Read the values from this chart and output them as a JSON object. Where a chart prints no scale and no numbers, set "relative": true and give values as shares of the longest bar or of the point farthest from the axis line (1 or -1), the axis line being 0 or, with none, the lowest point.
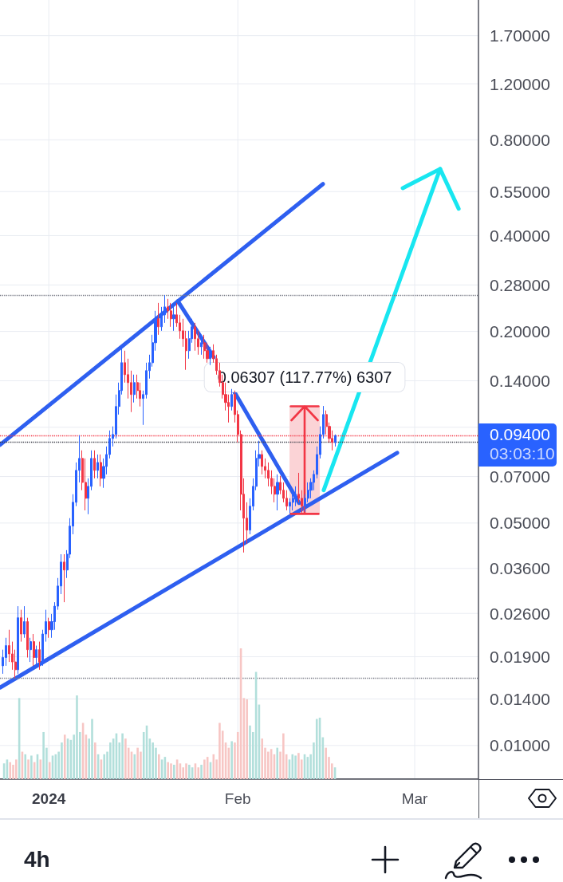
{
  "chart_data": [
    {
      "type": "candlestick",
      "log": "y",
      "grid": true,
      "xlim": [
        "2023-12-24T00:00",
        "2024-03-11T11:00"
      ],
      "xticks": [
        {
          "value": "2024-01-01",
          "label": "2024"
        },
        {
          "value": "2024-02-01",
          "label": "Feb"
        },
        {
          "value": "2024-03-01",
          "label": "Mar"
        }
      ],
      "ylim": [
        0.00784,
        2.2
      ],
      "yticks": [
        {
          "value": 0.01,
          "label": "0.01000"
        },
        {
          "value": 0.014,
          "label": "0.01400"
        },
        {
          "value": 0.019,
          "label": "0.01900"
        },
        {
          "value": 0.026,
          "label": "0.02600"
        },
        {
          "value": 0.036,
          "label": "0.03600"
        },
        {
          "value": 0.05,
          "label": "0.05000"
        },
        {
          "value": 0.07,
          "label": "0.07000"
        },
        {
          "value": 0.1,
          "label": null
        },
        {
          "value": 0.14,
          "label": "0.14000"
        },
        {
          "value": 0.2,
          "label": "0.20000"
        },
        {
          "value": 0.28,
          "label": "0.28000"
        },
        {
          "value": 0.4,
          "label": "0.40000"
        },
        {
          "value": 0.55,
          "label": "0.55000"
        },
        {
          "value": 0.8,
          "label": "0.80000"
        },
        {
          "value": 1.2,
          "label": "1.20000"
        },
        {
          "value": 1.7,
          "label": "1.70000"
        }
      ],
      "series": [
        {
          "type": "candlestick",
          "color": "#2962ff",
          "x": [
            "2023-12-24T12:00",
            "2023-12-25T00:00",
            "2023-12-27T00:00",
            "2023-12-28T00:00",
            "2023-12-29T00:00",
            "2023-12-30T00:00",
            "2023-12-31T00:00",
            "2023-12-31T12:00",
            "2024-01-01T12:00",
            "2024-01-02T00:00",
            "2024-01-02T12:00",
            "2024-01-03T00:00",
            "2024-01-04T00:00",
            "2024-01-04T12:00",
            "2024-01-05T00:00",
            "2024-01-05T12:00",
            "2024-01-06T00:00",
            "2024-01-07T12:00",
            "2024-01-08T00:00",
            "2024-01-09T00:00",
            "2024-01-10T00:00",
            "2024-01-10T12:00",
            "2024-01-11T00:00",
            "2024-01-11T12:00",
            "2024-01-12T00:00",
            "2024-01-12T12:00",
            "2024-01-13T00:00",
            "2024-01-15T00:00",
            "2024-01-16T12:00",
            "2024-01-17T00:00",
            "2024-01-17T12:00",
            "2024-01-18T00:00",
            "2024-01-18T12:00",
            "2024-01-19T12:00",
            "2024-01-20T00:00",
            "2024-01-21T12:00",
            "2024-01-24T00:00",
            "2024-01-24T12:00",
            "2024-01-26T00:00",
            "2024-01-27T12:00",
            "2024-01-31T00:00",
            "2024-02-03T00:00",
            "2024-02-03T12:00",
            "2024-02-04T00:00",
            "2024-02-04T12:00",
            "2024-02-07T12:00",
            "2024-02-09T12:00",
            "2024-02-10T00:00",
            "2024-02-10T12:00",
            "2024-02-12T00:00",
            "2024-02-12T12:00",
            "2024-02-13T00:00",
            "2024-02-13T12:00",
            "2024-02-14T00:00",
            "2024-02-14T12:00",
            "2024-02-15T00:00",
            "2024-02-17T00:00"
          ],
          "ohlc": [
            [
              0.0178,
              0.02,
              0.0168,
              0.0189
            ],
            [
              0.0189,
              0.0218,
              0.0178,
              0.0206
            ],
            [
              0.0173,
              0.0274,
              0.0168,
              0.0252
            ],
            [
              0.0224,
              0.0274,
              0.0218,
              0.0245
            ],
            [
              0.02,
              0.0218,
              0.0183,
              0.0212
            ],
            [
              0.0189,
              0.0206,
              0.0178,
              0.02
            ],
            [
              0.0183,
              0.0231,
              0.0178,
              0.0224
            ],
            [
              0.0224,
              0.0267,
              0.0212,
              0.0245
            ],
            [
              0.0231,
              0.0259,
              0.0218,
              0.0245
            ],
            [
              0.0245,
              0.0282,
              0.0231,
              0.0274
            ],
            [
              0.0274,
              0.0336,
              0.0267,
              0.0317
            ],
            [
              0.0317,
              0.0399,
              0.0299,
              0.0377
            ],
            [
              0.0356,
              0.0411,
              0.0336,
              0.0399
            ],
            [
              0.0399,
              0.0518,
              0.0388,
              0.0489
            ],
            [
              0.0489,
              0.0616,
              0.0461,
              0.0581
            ],
            [
              0.0581,
              0.0775,
              0.0565,
              0.0732
            ],
            [
              0.0732,
              0.0944,
              0.0671,
              0.0798
            ],
            [
              0.0598,
              0.0691,
              0.0533,
              0.0652
            ],
            [
              0.0652,
              0.0846,
              0.0634,
              0.0798
            ],
            [
              0.0732,
              0.0821,
              0.0691,
              0.0775
            ],
            [
              0.0691,
              0.0798,
              0.0645,
              0.0753
            ],
            [
              0.0753,
              0.087,
              0.0711,
              0.0821
            ],
            [
              0.0821,
              0.0977,
              0.0798,
              0.0922
            ],
            [
              0.0922,
              0.1006,
              0.087,
              0.0949
            ],
            [
              0.0949,
              0.1267,
              0.0922,
              0.1162
            ],
            [
              0.1162,
              0.1381,
              0.1096,
              0.1304
            ],
            [
              0.1304,
              0.177,
              0.1267,
              0.1595
            ],
            [
              0.1267,
              0.1463,
              0.1196,
              0.1381
            ],
            [
              0.1231,
              0.1304,
              0.1017,
              0.1267
            ],
            [
              0.1267,
              0.1595,
              0.1231,
              0.1506
            ],
            [
              0.1506,
              0.169,
              0.1422,
              0.1595
            ],
            [
              0.1595,
              0.1952,
              0.155,
              0.1843
            ],
            [
              0.1843,
              0.2321,
              0.174,
              0.2191
            ],
            [
              0.2068,
              0.2388,
              0.2009,
              0.2255
            ],
            [
              0.2255,
              0.26,
              0.2128,
              0.2388
            ],
            [
              0.2191,
              0.2388,
              0.2009,
              0.2255
            ],
            [
              0.174,
              0.2009,
              0.1642,
              0.1897
            ],
            [
              0.1897,
              0.2191,
              0.1843,
              0.2068
            ],
            [
              0.179,
              0.1952,
              0.169,
              0.1843
            ],
            [
              0.1642,
              0.179,
              0.1568,
              0.174
            ],
            [
              0.1162,
              0.1319,
              0.1129,
              0.1267
            ],
            [
              0.0475,
              0.0598,
              0.0461,
              0.0565
            ],
            [
              0.0565,
              0.0691,
              0.0548,
              0.0652
            ],
            [
              0.0652,
              0.0846,
              0.0634,
              0.0798
            ],
            [
              0.0798,
              0.0907,
              0.0753,
              0.0821
            ],
            [
              0.0616,
              0.0711,
              0.0548,
              0.0671
            ],
            [
              0.0565,
              0.0598,
              0.0536,
              0.0581
            ],
            [
              0.0581,
              0.0634,
              0.0548,
              0.0598
            ],
            [
              0.0598,
              0.0652,
              0.0565,
              0.0616
            ],
            [
              0.0565,
              0.0616,
              0.0542,
              0.0598
            ],
            [
              0.0598,
              0.0671,
              0.0581,
              0.0634
            ],
            [
              0.0634,
              0.0691,
              0.0598,
              0.0671
            ],
            [
              0.0671,
              0.0732,
              0.0634,
              0.0711
            ],
            [
              0.0711,
              0.087,
              0.0691,
              0.0821
            ],
            [
              0.0821,
              0.1006,
              0.0798,
              0.0949
            ],
            [
              0.0949,
              0.1166,
              0.0922,
              0.1096
            ],
            [
              0.0896,
              0.0949,
              0.087,
              0.094
            ]
          ]
        },
        {
          "type": "candlestick",
          "color": "#f23645",
          "x": [
            "2023-12-25T12:00",
            "2023-12-26T00:00",
            "2023-12-26T12:00",
            "2023-12-27T12:00",
            "2023-12-28T12:00",
            "2023-12-29T12:00",
            "2023-12-30T12:00",
            "2024-01-01T00:00",
            "2024-01-03T12:00",
            "2024-01-06T12:00",
            "2024-01-07T00:00",
            "2024-01-08T12:00",
            "2024-01-09T12:00",
            "2024-01-13T12:00",
            "2024-01-14T00:00",
            "2024-01-14T12:00",
            "2024-01-15T12:00",
            "2024-01-16T00:00",
            "2024-01-19T00:00",
            "2024-01-20T12:00",
            "2024-01-21T00:00",
            "2024-01-22T00:00",
            "2024-01-22T12:00",
            "2024-01-23T00:00",
            "2024-01-23T12:00",
            "2024-01-25T00:00",
            "2024-01-25T12:00",
            "2024-01-26T12:00",
            "2024-01-27T00:00",
            "2024-01-28T00:00",
            "2024-01-28T12:00",
            "2024-01-29T00:00",
            "2024-01-29T12:00",
            "2024-01-30T00:00",
            "2024-01-30T12:00",
            "2024-01-31T12:00",
            "2024-02-01T00:00",
            "2024-02-01T12:00",
            "2024-02-02T00:00",
            "2024-02-02T12:00",
            "2024-02-05T00:00",
            "2024-02-05T12:00",
            "2024-02-06T00:00",
            "2024-02-06T12:00",
            "2024-02-07T00:00",
            "2024-02-08T00:00",
            "2024-02-08T12:00",
            "2024-02-09T00:00",
            "2024-02-11T00:00",
            "2024-02-11T12:00",
            "2024-02-15T12:00",
            "2024-02-16T00:00",
            "2024-02-16T12:00"
          ],
          "ohlc": [
            [
              0.0206,
              0.0231,
              0.0183,
              0.0194
            ],
            [
              0.0194,
              0.0212,
              0.0173,
              0.0183
            ],
            [
              0.0183,
              0.02,
              0.0163,
              0.0173
            ],
            [
              0.0252,
              0.0267,
              0.0212,
              0.0224
            ],
            [
              0.0245,
              0.0252,
              0.0189,
              0.02
            ],
            [
              0.0212,
              0.0224,
              0.0178,
              0.0189
            ],
            [
              0.02,
              0.0212,
              0.0173,
              0.0183
            ],
            [
              0.0245,
              0.0252,
              0.0218,
              0.0231
            ],
            [
              0.0377,
              0.0399,
              0.0282,
              0.0356
            ],
            [
              0.0798,
              0.0846,
              0.0634,
              0.0671
            ],
            [
              0.0671,
              0.0798,
              0.0548,
              0.0598
            ],
            [
              0.0798,
              0.0846,
              0.0691,
              0.0732
            ],
            [
              0.0775,
              0.0821,
              0.0652,
              0.0691
            ],
            [
              0.1595,
              0.174,
              0.1381,
              0.1463
            ],
            [
              0.1463,
              0.1642,
              0.1231,
              0.1381
            ],
            [
              0.1381,
              0.1506,
              0.1116,
              0.1267
            ],
            [
              0.1381,
              0.1463,
              0.1231,
              0.1304
            ],
            [
              0.1304,
              0.1381,
              0.1162,
              0.1231
            ],
            [
              0.2191,
              0.2458,
              0.1952,
              0.2068
            ],
            [
              0.2388,
              0.2531,
              0.2191,
              0.2321
            ],
            [
              0.2321,
              0.2458,
              0.2068,
              0.2191
            ],
            [
              0.2255,
              0.2458,
              0.2068,
              0.2128
            ],
            [
              0.2128,
              0.2255,
              0.1897,
              0.2009
            ],
            [
              0.2009,
              0.2191,
              0.179,
              0.1897
            ],
            [
              0.1897,
              0.2009,
              0.1515,
              0.174
            ],
            [
              0.2068,
              0.2128,
              0.174,
              0.1897
            ],
            [
              0.1897,
              0.2009,
              0.169,
              0.179
            ],
            [
              0.1843,
              0.1952,
              0.1642,
              0.174
            ],
            [
              0.174,
              0.1843,
              0.1595,
              0.1642
            ],
            [
              0.174,
              0.1822,
              0.1595,
              0.1642
            ],
            [
              0.1642,
              0.169,
              0.1463,
              0.1506
            ],
            [
              0.1506,
              0.1595,
              0.1342,
              0.1381
            ],
            [
              0.1381,
              0.1463,
              0.1231,
              0.1267
            ],
            [
              0.1267,
              0.1381,
              0.1129,
              0.1196
            ],
            [
              0.1196,
              0.1267,
              0.1035,
              0.1162
            ],
            [
              0.1267,
              0.1304,
              0.1035,
              0.1096
            ],
            [
              0.1096,
              0.1129,
              0.0896,
              0.0949
            ],
            [
              0.0949,
              0.0977,
              0.0548,
              0.0616
            ],
            [
              0.0616,
              0.0691,
              0.0404,
              0.0518
            ],
            [
              0.0518,
              0.0581,
              0.043,
              0.0475
            ],
            [
              0.0821,
              0.0846,
              0.0711,
              0.0753
            ],
            [
              0.0753,
              0.0798,
              0.0691,
              0.0732
            ],
            [
              0.0732,
              0.0775,
              0.0652,
              0.0691
            ],
            [
              0.0691,
              0.0732,
              0.0616,
              0.0652
            ],
            [
              0.0652,
              0.0691,
              0.0581,
              0.0616
            ],
            [
              0.0671,
              0.0703,
              0.0616,
              0.0634
            ],
            [
              0.0634,
              0.0671,
              0.0581,
              0.0598
            ],
            [
              0.0598,
              0.0634,
              0.0548,
              0.0565
            ],
            [
              0.0616,
              0.0719,
              0.0581,
              0.0598
            ],
            [
              0.0598,
              0.0634,
              0.0536,
              0.0565
            ],
            [
              0.1096,
              0.1129,
              0.0949,
              0.1006
            ],
            [
              0.1006,
              0.1035,
              0.0896,
              0.0922
            ],
            [
              0.0922,
              0.0977,
              0.0846,
              0.0896
            ]
          ]
        },
        {
          "type": "line",
          "color": "#2e5ff0",
          "x": [
            "2023-12-24T00:00",
            "2024-02-14T23:00"
          ],
          "values": [
            0.088,
            0.581
          ]
        },
        {
          "type": "line",
          "color": "#2e5ff0",
          "x": [
            "2023-12-24T00:00",
            "2024-02-27T03:00"
          ],
          "values": [
            0.0152,
            0.0831
          ]
        },
        {
          "type": "line",
          "color": "#2e5ff0",
          "x": [
            "2024-01-22T04:00",
            "2024-01-28T01:00"
          ],
          "values": [
            0.249,
            0.166
          ]
        },
        {
          "type": "line",
          "color": "#2e5ff0",
          "x": [
            "2024-01-31T08:00",
            "2024-02-11T01:00"
          ],
          "values": [
            0.13,
            0.0578
          ]
        },
        {
          "type": "line",
          "color": "#18e6f0",
          "x": [
            "2024-02-15T02:00",
            "2024-03-05T04:00"
          ],
          "values": [
            0.0634,
            0.648
          ]
        },
        {
          "type": "line",
          "color": "#18e6f0",
          "x": [
            "2024-02-28T01:00",
            "2024-03-05T04:00",
            "2024-03-08T05:00"
          ],
          "values": [
            0.564,
            0.648,
            0.486
          ]
        },
        {
          "type": "bar",
          "color": "#fbd3d6",
          "x": [
            "2024-02-11T23:00"
          ],
          "base": [
            0.05355
          ],
          "values": [
            0.06307
          ],
          "value_labels": [
            "0.06307 (117.77%) 6307"
          ]
        }
      ],
      "ref_lines": [
        {
          "axis": "y",
          "value": 0.26,
          "color": "#787b86",
          "line_style": "dotted"
        },
        {
          "axis": "y",
          "value": 0.0163,
          "color": "#787b86",
          "line_style": "dotted"
        },
        {
          "axis": "y",
          "value": 0.0899,
          "color": "#3c3f4a",
          "line_style": "dotted"
        },
        {
          "axis": "y",
          "value": 0.094,
          "label": "0.09400\n03:03:10",
          "color": "#f23645",
          "line_style": "dotted"
        }
      ],
      "annotations": [
        "4h"
      ]
    },
    {
      "type": "bar",
      "relative": true,
      "tick_labels": false,
      "xlim": [
        "2023-12-24T00:00",
        "2024-03-11T11:00"
      ],
      "x": [
        "2023-12-24T12:00",
        "2023-12-25T00:00",
        "2023-12-25T12:00",
        "2023-12-26T00:00",
        "2023-12-26T12:00",
        "2023-12-27T00:00",
        "2023-12-27T12:00",
        "2023-12-28T00:00",
        "2023-12-28T12:00",
        "2023-12-29T00:00",
        "2023-12-29T12:00",
        "2023-12-30T00:00",
        "2023-12-30T12:00",
        "2023-12-31T00:00",
        "2023-12-31T12:00",
        "2024-01-01T00:00",
        "2024-01-01T12:00",
        "2024-01-02T00:00",
        "2024-01-02T12:00",
        "2024-01-03T00:00",
        "2024-01-03T12:00",
        "2024-01-04T00:00",
        "2024-01-04T12:00",
        "2024-01-05T00:00",
        "2024-01-05T12:00",
        "2024-01-06T00:00",
        "2024-01-06T12:00",
        "2024-01-07T00:00",
        "2024-01-07T12:00",
        "2024-01-08T00:00",
        "2024-01-08T12:00",
        "2024-01-09T00:00",
        "2024-01-09T12:00",
        "2024-01-10T00:00",
        "2024-01-10T12:00",
        "2024-01-11T00:00",
        "2024-01-11T12:00",
        "2024-01-12T00:00",
        "2024-01-12T12:00",
        "2024-01-13T00:00",
        "2024-01-13T12:00",
        "2024-01-14T00:00",
        "2024-01-14T12:00",
        "2024-01-15T00:00",
        "2024-01-15T12:00",
        "2024-01-16T00:00",
        "2024-01-16T12:00",
        "2024-01-17T00:00",
        "2024-01-17T12:00",
        "2024-01-18T00:00",
        "2024-01-18T12:00",
        "2024-01-19T00:00",
        "2024-01-19T12:00",
        "2024-01-20T00:00",
        "2024-01-20T12:00",
        "2024-01-21T00:00",
        "2024-01-21T12:00",
        "2024-01-22T00:00",
        "2024-01-22T12:00",
        "2024-01-23T00:00",
        "2024-01-23T12:00",
        "2024-01-24T00:00",
        "2024-01-24T12:00",
        "2024-01-25T00:00",
        "2024-01-25T12:00",
        "2024-01-26T00:00",
        "2024-01-26T12:00",
        "2024-01-27T00:00",
        "2024-01-27T12:00",
        "2024-01-28T00:00",
        "2024-01-28T12:00",
        "2024-01-29T00:00",
        "2024-01-29T12:00",
        "2024-01-30T00:00",
        "2024-01-30T12:00",
        "2024-01-31T00:00",
        "2024-01-31T12:00",
        "2024-02-01T00:00",
        "2024-02-01T12:00",
        "2024-02-02T00:00",
        "2024-02-02T12:00",
        "2024-02-03T00:00",
        "2024-02-03T12:00",
        "2024-02-04T00:00",
        "2024-02-04T12:00",
        "2024-02-05T00:00",
        "2024-02-05T12:00",
        "2024-02-06T00:00",
        "2024-02-06T12:00",
        "2024-02-07T00:00",
        "2024-02-07T12:00",
        "2024-02-08T00:00",
        "2024-02-08T12:00",
        "2024-02-09T00:00",
        "2024-02-09T12:00",
        "2024-02-10T00:00",
        "2024-02-10T12:00",
        "2024-02-11T00:00",
        "2024-02-11T12:00",
        "2024-02-12T00:00",
        "2024-02-12T12:00",
        "2024-02-13T00:00",
        "2024-02-13T12:00",
        "2024-02-14T00:00",
        "2024-02-14T12:00",
        "2024-02-15T00:00",
        "2024-02-15T12:00",
        "2024-02-16T00:00",
        "2024-02-16T12:00",
        "2024-02-17T00:00"
      ],
      "values": [
        0.12,
        0.15,
        0.13,
        0.11,
        0.15,
        0.62,
        0.21,
        0.19,
        0.15,
        0.18,
        0.13,
        0.19,
        0.15,
        0.36,
        0.24,
        0.13,
        0.18,
        0.19,
        0.21,
        0.28,
        0.34,
        0.31,
        0.3,
        0.34,
        0.64,
        0.36,
        0.43,
        0.34,
        0.31,
        0.46,
        0.28,
        0.19,
        0.15,
        0.19,
        0.21,
        0.28,
        0.31,
        0.35,
        0.28,
        0.35,
        0.31,
        0.24,
        0.21,
        0.19,
        0.24,
        0.21,
        0.36,
        0.41,
        0.31,
        0.28,
        0.24,
        0.19,
        0.15,
        0.17,
        0.13,
        0.12,
        0.11,
        0.15,
        0.12,
        0.09,
        0.12,
        0.11,
        0.09,
        0.12,
        0.09,
        0.11,
        0.15,
        0.17,
        0.13,
        0.19,
        0.15,
        0.43,
        0.37,
        0.28,
        0.24,
        0.29,
        0.28,
        0.36,
        1,
        0.62,
        0.61,
        0.41,
        0.36,
        0.82,
        0.57,
        0.31,
        0.24,
        0.21,
        0.23,
        0.19,
        0.24,
        0.21,
        0.35,
        0.19,
        0.15,
        0.19,
        0.18,
        0.2,
        0.15,
        0.19,
        0.17,
        0.19,
        0.28,
        0.46,
        0.47,
        0.32,
        0.24,
        0.17,
        0.12,
        0.09
      ],
      "colors": [
        "#b2dfdb",
        "#b2dfdb",
        "#f7c6c4",
        "#f7c6c4",
        "#f7c6c4",
        "#b2dfdb",
        "#f7c6c4",
        "#b2dfdb",
        "#f7c6c4",
        "#b2dfdb",
        "#f7c6c4",
        "#b2dfdb",
        "#f7c6c4",
        "#b2dfdb",
        "#b2dfdb",
        "#f7c6c4",
        "#b2dfdb",
        "#b2dfdb",
        "#b2dfdb",
        "#b2dfdb",
        "#f7c6c4",
        "#b2dfdb",
        "#b2dfdb",
        "#b2dfdb",
        "#b2dfdb",
        "#b2dfdb",
        "#f7c6c4",
        "#f7c6c4",
        "#b2dfdb",
        "#b2dfdb",
        "#f7c6c4",
        "#b2dfdb",
        "#f7c6c4",
        "#b2dfdb",
        "#b2dfdb",
        "#b2dfdb",
        "#b2dfdb",
        "#b2dfdb",
        "#b2dfdb",
        "#b2dfdb",
        "#f7c6c4",
        "#f7c6c4",
        "#f7c6c4",
        "#b2dfdb",
        "#f7c6c4",
        "#f7c6c4",
        "#b2dfdb",
        "#b2dfdb",
        "#b2dfdb",
        "#b2dfdb",
        "#b2dfdb",
        "#f7c6c4",
        "#b2dfdb",
        "#b2dfdb",
        "#f7c6c4",
        "#f7c6c4",
        "#b2dfdb",
        "#f7c6c4",
        "#f7c6c4",
        "#f7c6c4",
        "#f7c6c4",
        "#b2dfdb",
        "#b2dfdb",
        "#f7c6c4",
        "#f7c6c4",
        "#b2dfdb",
        "#f7c6c4",
        "#f7c6c4",
        "#b2dfdb",
        "#f7c6c4",
        "#f7c6c4",
        "#f7c6c4",
        "#f7c6c4",
        "#f7c6c4",
        "#f7c6c4",
        "#b2dfdb",
        "#f7c6c4",
        "#f7c6c4",
        "#f7c6c4",
        "#f7c6c4",
        "#f7c6c4",
        "#b2dfdb",
        "#b2dfdb",
        "#b2dfdb",
        "#b2dfdb",
        "#f7c6c4",
        "#f7c6c4",
        "#f7c6c4",
        "#f7c6c4",
        "#f7c6c4",
        "#b2dfdb",
        "#f7c6c4",
        "#f7c6c4",
        "#f7c6c4",
        "#b2dfdb",
        "#b2dfdb",
        "#b2dfdb",
        "#f7c6c4",
        "#f7c6c4",
        "#b2dfdb",
        "#b2dfdb",
        "#b2dfdb",
        "#b2dfdb",
        "#b2dfdb",
        "#b2dfdb",
        "#b2dfdb",
        "#f7c6c4",
        "#f7c6c4",
        "#f7c6c4",
        "#b2dfdb"
      ]
    }
  ]
}
